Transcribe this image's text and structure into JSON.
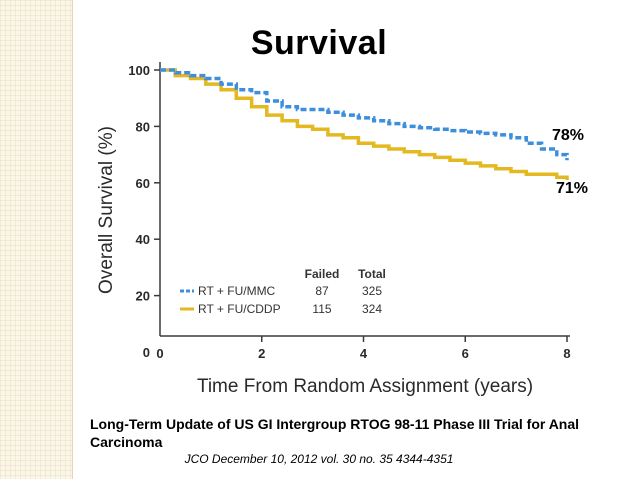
{
  "slide": {
    "title": "Survival",
    "caption": "Long-Term Update of US GI Intergroup RTOG 98-11 Phase III Trial for Anal Carcinoma",
    "source": "JCO December 10, 2012 vol. 30 no. 35 4344-4351"
  },
  "colors": {
    "mmc": "#3d8fde",
    "cddp": "#e4b820",
    "axis": "#3a3a3a"
  },
  "chart_data": {
    "type": "line",
    "title": "Survival",
    "xlabel": "Time From Random Assignment (years)",
    "ylabel": "Overall Survival (%)",
    "xlim": [
      0,
      8
    ],
    "ylim": [
      0,
      100
    ],
    "xticks": [
      0,
      2,
      4,
      6,
      8
    ],
    "yticks": [
      0,
      20,
      40,
      60,
      80,
      100
    ],
    "legend": {
      "position": "bottom-left",
      "headers": [
        "Failed",
        "Total"
      ],
      "entries": [
        {
          "label": "RT + FU/MMC",
          "failed": "87",
          "total": "325"
        },
        {
          "label": "RT + FU/CDDP",
          "failed": "115",
          "total": "324"
        }
      ]
    },
    "annotations": [
      {
        "text": "78%",
        "series": "RT + FU/MMC"
      },
      {
        "text": "71%",
        "series": "RT + FU/CDDP"
      }
    ],
    "series": [
      {
        "name": "RT + FU/MMC",
        "style": "dashed",
        "x": [
          0,
          0.3,
          0.6,
          0.9,
          1.2,
          1.5,
          1.8,
          2.1,
          2.4,
          2.7,
          3.0,
          3.3,
          3.6,
          3.9,
          4.2,
          4.5,
          4.8,
          5.1,
          5.4,
          5.7,
          6.0,
          6.3,
          6.6,
          6.9,
          7.2,
          7.5,
          7.8,
          8.0
        ],
        "y": [
          100,
          99,
          98,
          97,
          95,
          93,
          92,
          89,
          87,
          86,
          86,
          85,
          84,
          83,
          82,
          81,
          80,
          79.5,
          79,
          78.5,
          78,
          77.5,
          77,
          76,
          74,
          72,
          70,
          68
        ]
      },
      {
        "name": "RT + FU/CDDP",
        "style": "solid",
        "x": [
          0,
          0.3,
          0.6,
          0.9,
          1.2,
          1.5,
          1.8,
          2.1,
          2.4,
          2.7,
          3.0,
          3.3,
          3.6,
          3.9,
          4.2,
          4.5,
          4.8,
          5.1,
          5.4,
          5.7,
          6.0,
          6.3,
          6.6,
          6.9,
          7.2,
          7.5,
          7.8,
          8.0
        ],
        "y": [
          100,
          98,
          97,
          95,
          93,
          90,
          87,
          84,
          82,
          80,
          79,
          77,
          76,
          74,
          73,
          72,
          71,
          70,
          69,
          68,
          67,
          66,
          65,
          64,
          63,
          63,
          62,
          61
        ]
      }
    ]
  }
}
